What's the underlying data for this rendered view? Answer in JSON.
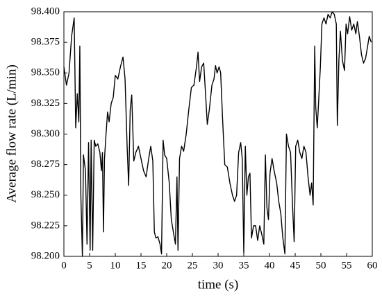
{
  "chart_data": {
    "type": "line",
    "xlabel": "time (s)",
    "ylabel": "Average flow rate (L/min)",
    "xlim": [
      0,
      60
    ],
    "xticks": [
      0,
      5,
      10,
      15,
      20,
      25,
      30,
      35,
      40,
      45,
      50,
      55,
      60
    ],
    "ylim": [
      98.2,
      98.4
    ],
    "yticks": [
      {
        "value": 98.2,
        "label": "98.200"
      },
      {
        "value": 98.225,
        "label": "98.225"
      },
      {
        "value": 98.25,
        "label": "98.250"
      },
      {
        "value": 98.275,
        "label": "98.275"
      },
      {
        "value": 98.3,
        "label": "98.300"
      },
      {
        "value": 98.325,
        "label": "98.325"
      },
      {
        "value": 98.35,
        "label": "98.350"
      },
      {
        "value": 98.375,
        "label": "98.375"
      },
      {
        "value": 98.4,
        "label": "98.400"
      }
    ],
    "color": "#000000",
    "x": [
      0,
      0.5,
      1,
      1.5,
      2,
      2.3,
      2.6,
      2.9,
      3.1,
      3.3,
      3.6,
      3.8,
      4.2,
      4.5,
      4.8,
      5.1,
      5.3,
      5.6,
      5.9,
      6.2,
      6.6,
      7,
      7.3,
      7.5,
      7.7,
      7.9,
      8.2,
      8.5,
      8.8,
      9.2,
      9.6,
      10,
      10.5,
      11,
      11.5,
      11.9,
      12.3,
      12.6,
      12.9,
      13.2,
      13.6,
      14,
      14.5,
      15,
      15.5,
      16,
      16.5,
      16.9,
      17.3,
      17.6,
      17.9,
      18.3,
      18.7,
      19,
      19.3,
      19.6,
      20,
      20.5,
      20.9,
      21.3,
      21.7,
      22,
      22.2,
      22.5,
      22.9,
      23.3,
      23.8,
      24.3,
      24.8,
      25.3,
      25.8,
      26.1,
      26.4,
      26.8,
      27.2,
      27.6,
      27.9,
      28.3,
      28.8,
      29.2,
      29.5,
      29.8,
      30.2,
      30.5,
      30.9,
      31.3,
      31.8,
      32.3,
      32.8,
      33.2,
      33.6,
      34,
      34.4,
      34.7,
      35,
      35.3,
      35.6,
      35.9,
      36.2,
      36.5,
      36.9,
      37.3,
      37.7,
      38.1,
      38.5,
      38.9,
      39.2,
      39.5,
      39.8,
      40.1,
      40.5,
      40.9,
      41.4,
      41.8,
      42.2,
      42.6,
      43,
      43.3,
      43.7,
      44.1,
      44.5,
      44.8,
      45.1,
      45.5,
      45.9,
      46.3,
      46.7,
      47.1,
      47.5,
      47.9,
      48.2,
      48.5,
      48.8,
      49,
      49.3,
      49.6,
      49.9,
      50.2,
      50.6,
      51,
      51.4,
      51.8,
      52.2,
      52.6,
      53,
      53.2,
      53.5,
      53.8,
      54.2,
      54.6,
      54.9,
      55.2,
      55.6,
      56,
      56.4,
      56.8,
      57.1,
      57.5,
      57.9,
      58.3,
      58.7,
      59.1,
      59.4,
      59.8
    ],
    "values": [
      98.355,
      98.34,
      98.35,
      98.38,
      98.395,
      98.305,
      98.333,
      98.31,
      98.372,
      98.25,
      98.2,
      98.283,
      98.27,
      98.21,
      98.293,
      98.205,
      98.295,
      98.205,
      98.295,
      98.29,
      98.292,
      98.285,
      98.27,
      98.285,
      98.22,
      98.28,
      98.3,
      98.318,
      98.31,
      98.325,
      98.33,
      98.348,
      98.345,
      98.355,
      98.363,
      98.345,
      98.29,
      98.258,
      98.32,
      98.332,
      98.278,
      98.285,
      98.29,
      98.28,
      98.27,
      98.265,
      98.28,
      98.29,
      98.278,
      98.22,
      98.215,
      98.216,
      98.21,
      98.202,
      98.295,
      98.283,
      98.28,
      98.26,
      98.23,
      98.22,
      98.21,
      98.265,
      98.205,
      98.28,
      98.29,
      98.286,
      98.3,
      98.32,
      98.338,
      98.34,
      98.355,
      98.367,
      98.343,
      98.355,
      98.358,
      98.33,
      98.308,
      98.32,
      98.34,
      98.345,
      98.356,
      98.35,
      98.355,
      98.35,
      98.31,
      98.275,
      98.273,
      98.26,
      98.25,
      98.245,
      98.25,
      98.285,
      98.293,
      98.28,
      98.203,
      98.29,
      98.25,
      98.265,
      98.268,
      98.215,
      98.225,
      98.225,
      98.213,
      98.225,
      98.218,
      98.21,
      98.283,
      98.24,
      98.23,
      98.268,
      98.28,
      98.27,
      98.26,
      98.245,
      98.235,
      98.215,
      98.202,
      98.3,
      98.29,
      98.285,
      98.24,
      98.212,
      98.29,
      98.295,
      98.285,
      98.28,
      98.29,
      98.285,
      98.265,
      98.25,
      98.26,
      98.242,
      98.372,
      98.322,
      98.305,
      98.33,
      98.355,
      98.39,
      98.395,
      98.39,
      98.398,
      98.395,
      98.4,
      98.398,
      98.39,
      98.307,
      98.36,
      98.384,
      98.36,
      98.352,
      98.39,
      98.382,
      98.396,
      98.385,
      98.39,
      98.382,
      98.392,
      98.38,
      98.365,
      98.358,
      98.362,
      98.372,
      98.38,
      98.375
    ]
  }
}
